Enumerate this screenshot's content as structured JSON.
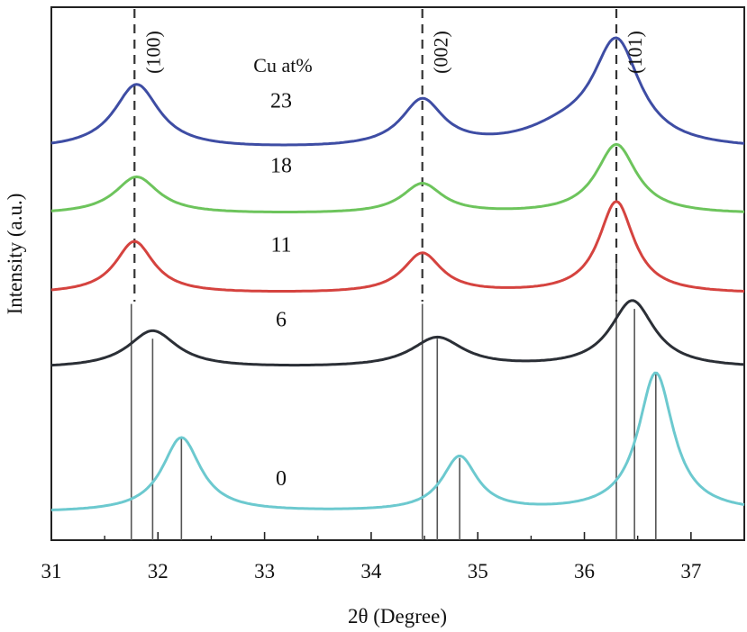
{
  "chart_data": {
    "type": "line",
    "title": "",
    "xlabel": "2θ (Degree)",
    "ylabel": "Intensity (a.u.)",
    "xlim": [
      31,
      37.5
    ],
    "x_ticks": [
      "31",
      "32",
      "33",
      "34",
      "35",
      "36",
      "37"
    ],
    "legend_title": "Cu at%",
    "series": [
      {
        "name": "0",
        "color": "#6CC9CF",
        "offset": 0.0,
        "base": 0.03,
        "slope": 0.0,
        "peaks": [
          [
            32.22,
            0.15,
            0.22
          ],
          [
            34.83,
            0.11,
            0.2
          ],
          [
            36.67,
            0.28,
            0.2
          ]
        ]
      },
      {
        "name": "6",
        "color": "#2B2F36",
        "offset": 0.32,
        "base": 0.0,
        "slope": 0.0,
        "peaks": [
          [
            31.95,
            0.075,
            0.28
          ],
          [
            34.62,
            0.06,
            0.3
          ],
          [
            36.45,
            0.135,
            0.25
          ]
        ]
      },
      {
        "name": "11",
        "color": "#D5433F",
        "offset": 0.47,
        "base": 0.0,
        "slope": 0.0,
        "peaks": [
          [
            31.78,
            0.105,
            0.22
          ],
          [
            34.48,
            0.08,
            0.22
          ],
          [
            36.3,
            0.185,
            0.2
          ]
        ]
      },
      {
        "name": "18",
        "color": "#6DC45C",
        "offset": 0.63,
        "base": 0.0,
        "slope": 0.0,
        "peaks": [
          [
            31.8,
            0.075,
            0.25
          ],
          [
            34.48,
            0.06,
            0.23
          ],
          [
            36.3,
            0.14,
            0.23
          ]
        ]
      },
      {
        "name": "23",
        "color": "#3E4DA4",
        "offset": 0.76,
        "base": 0.0,
        "slope": 0.0,
        "peaks": [
          [
            31.8,
            0.13,
            0.26
          ],
          [
            34.48,
            0.095,
            0.24
          ],
          [
            36.3,
            0.21,
            0.27
          ],
          [
            35.8,
            0.03,
            0.45
          ]
        ]
      }
    ],
    "reference_lines": [
      {
        "x": 31.75,
        "height": 0.45
      },
      {
        "x": 31.95,
        "height": 0.38
      },
      {
        "x": 32.22,
        "height": 0.18
      },
      {
        "x": 34.48,
        "height": 0.45
      },
      {
        "x": 34.62,
        "height": 0.38
      },
      {
        "x": 34.83,
        "height": 0.14
      },
      {
        "x": 36.3,
        "height": 0.55
      },
      {
        "x": 36.47,
        "height": 0.44
      },
      {
        "x": 36.67,
        "height": 0.31
      }
    ],
    "dashed_lines": [
      {
        "x": 31.78,
        "label": "(100)"
      },
      {
        "x": 34.48,
        "label": "(002)"
      },
      {
        "x": 36.3,
        "label": "(101)"
      }
    ]
  }
}
